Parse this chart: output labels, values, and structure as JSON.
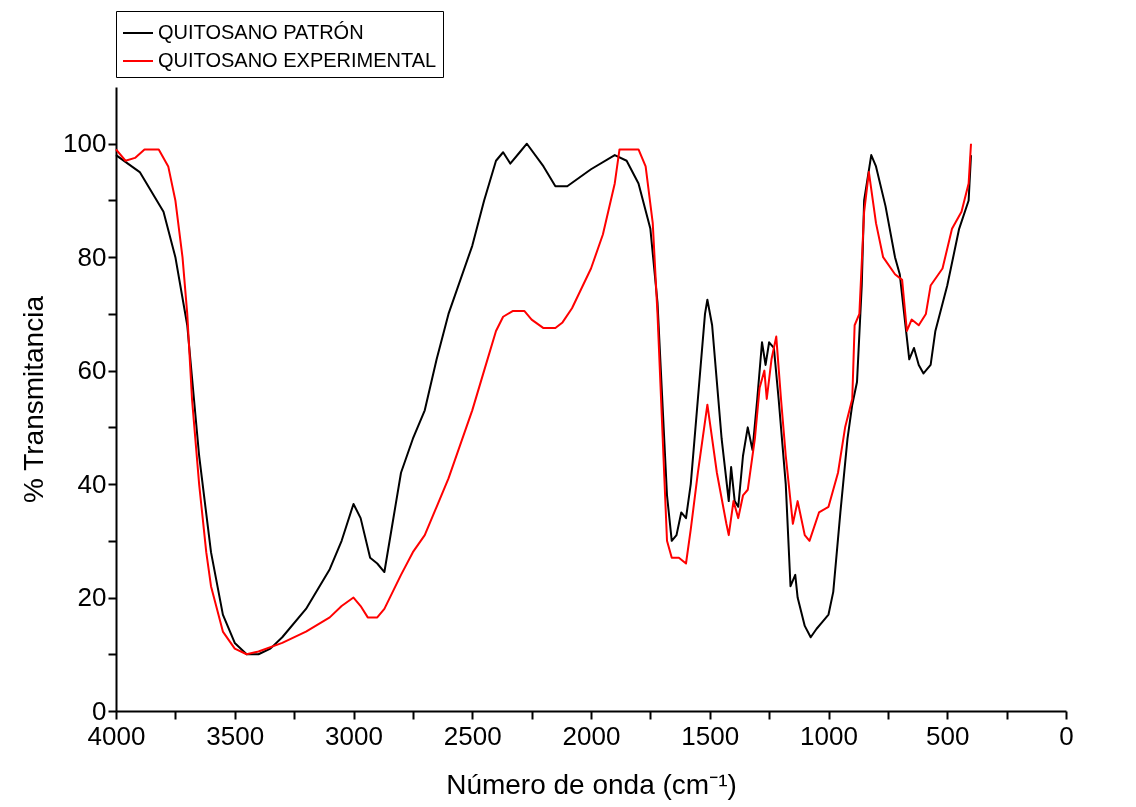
{
  "chart_data": {
    "type": "line",
    "xlabel": "Número de onda (cm⁻¹)",
    "ylabel": "% Transmitancia",
    "xlim": [
      4000,
      0
    ],
    "ylim": [
      0,
      110
    ],
    "xticks": [
      4000,
      {
        "value": 3750,
        "label": null
      },
      3500,
      {
        "value": 3250,
        "label": null
      },
      3000,
      {
        "value": 2750,
        "label": null
      },
      2500,
      {
        "value": 2250,
        "label": null
      },
      2000,
      {
        "value": 1750,
        "label": null
      },
      1500,
      {
        "value": 1250,
        "label": null
      },
      1000,
      {
        "value": 750,
        "label": null
      },
      500,
      {
        "value": 250,
        "label": null
      },
      0
    ],
    "yticks": [
      0,
      {
        "value": 10,
        "label": null
      },
      20,
      {
        "value": 30,
        "label": null
      },
      40,
      {
        "value": 50,
        "label": null
      },
      60,
      {
        "value": 70,
        "label": null
      },
      80,
      {
        "value": 90,
        "label": null
      },
      100
    ],
    "grid": false,
    "legend": "top",
    "line_style": "solid",
    "marker": "none",
    "series": [
      {
        "name": "QUITOSANO PATRÓN",
        "color": "#000000",
        "x": [
          4000,
          3900,
          3800,
          3750,
          3700,
          3650,
          3600,
          3550,
          3500,
          3450,
          3400,
          3350,
          3300,
          3200,
          3100,
          3050,
          3000,
          2970,
          2930,
          2900,
          2870,
          2840,
          2800,
          2750,
          2700,
          2650,
          2600,
          2500,
          2450,
          2400,
          2370,
          2340,
          2300,
          2270,
          2200,
          2150,
          2100,
          2000,
          1900,
          1850,
          1800,
          1750,
          1720,
          1700,
          1680,
          1660,
          1640,
          1620,
          1600,
          1580,
          1550,
          1520,
          1510,
          1490,
          1450,
          1420,
          1410,
          1395,
          1380,
          1360,
          1340,
          1320,
          1300,
          1280,
          1265,
          1250,
          1230,
          1210,
          1180,
          1160,
          1140,
          1130,
          1100,
          1075,
          1050,
          1030,
          1000,
          980,
          950,
          920,
          900,
          880,
          860,
          850,
          820,
          800,
          760,
          720,
          700,
          660,
          640,
          620,
          600,
          570,
          550,
          500,
          450,
          410,
          400
        ],
        "values": [
          98,
          95,
          88,
          80,
          68,
          45,
          28,
          17,
          12,
          10,
          10,
          11,
          13,
          18,
          25,
          30,
          36.5,
          34,
          27,
          26,
          24.5,
          32,
          42,
          48,
          53,
          62,
          70,
          82,
          90,
          97,
          98.5,
          96.5,
          98.5,
          100,
          96,
          92.5,
          92.5,
          95.5,
          98,
          97,
          93,
          85,
          72,
          55,
          38,
          30,
          31,
          35,
          34,
          40,
          55,
          70,
          72.5,
          68,
          48,
          37,
          43,
          37,
          36,
          45,
          50,
          46,
          55,
          65,
          61,
          65,
          64,
          55,
          40,
          22,
          24,
          20,
          15,
          13,
          14.5,
          15.5,
          17,
          21,
          35,
          48,
          54,
          58,
          75,
          90,
          98,
          96,
          89,
          80,
          77,
          62,
          64,
          61,
          59.5,
          61,
          67,
          75,
          85,
          90,
          98
        ]
      },
      {
        "name": "QUITOSANO EXPERIMENTAL",
        "color": "#ff0000",
        "x": [
          4000,
          3960,
          3920,
          3880,
          3820,
          3780,
          3750,
          3720,
          3700,
          3680,
          3650,
          3620,
          3600,
          3550,
          3500,
          3450,
          3400,
          3300,
          3200,
          3100,
          3050,
          3000,
          2970,
          2940,
          2900,
          2870,
          2800,
          2750,
          2700,
          2650,
          2600,
          2550,
          2500,
          2450,
          2400,
          2370,
          2330,
          2280,
          2250,
          2200,
          2150,
          2120,
          2080,
          2000,
          1950,
          1900,
          1880,
          1800,
          1770,
          1740,
          1720,
          1700,
          1680,
          1660,
          1630,
          1600,
          1580,
          1550,
          1520,
          1510,
          1490,
          1470,
          1430,
          1420,
          1400,
          1380,
          1360,
          1340,
          1310,
          1290,
          1270,
          1260,
          1240,
          1220,
          1200,
          1180,
          1150,
          1130,
          1100,
          1080,
          1040,
          1000,
          960,
          930,
          900,
          890,
          870,
          850,
          830,
          800,
          770,
          720,
          690,
          670,
          650,
          620,
          590,
          570,
          520,
          480,
          440,
          410,
          400
        ],
        "values": [
          99,
          97,
          97.5,
          99,
          99,
          96,
          90,
          80,
          70,
          55,
          40,
          28,
          22,
          14,
          11,
          10,
          10.5,
          12,
          14,
          16.5,
          18.5,
          20,
          18.5,
          16.5,
          16.5,
          18,
          24,
          28,
          31,
          36,
          41,
          47,
          53,
          60,
          67,
          69.5,
          70.5,
          70.5,
          69,
          67.5,
          67.5,
          68.5,
          71,
          78,
          84,
          93,
          99,
          99,
          96,
          86,
          70,
          50,
          30,
          27,
          27,
          26,
          32,
          42,
          51,
          54,
          48,
          42,
          33,
          31,
          37,
          34,
          38,
          39,
          48,
          57,
          60,
          55,
          62,
          66,
          55,
          45,
          33,
          37,
          31,
          30,
          35,
          36,
          42,
          50,
          55,
          68,
          70,
          88,
          95,
          86,
          80,
          77,
          76,
          67,
          69,
          68,
          70,
          75,
          78,
          85,
          88,
          93,
          100
        ]
      }
    ]
  }
}
